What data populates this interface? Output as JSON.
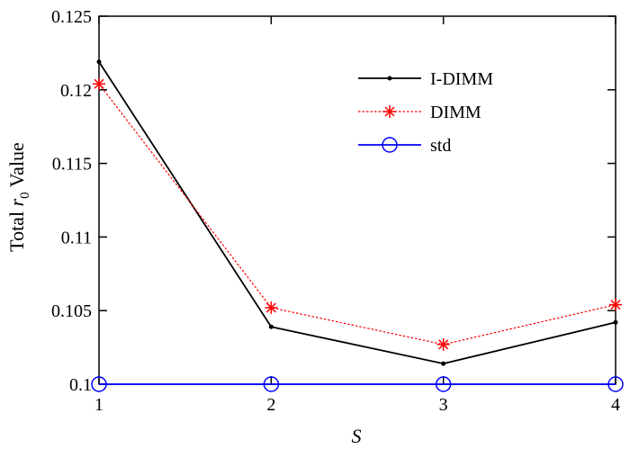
{
  "chart_data": {
    "type": "line",
    "title": "",
    "xlabel": "S",
    "ylabel_prefix": "Total ",
    "ylabel_var": "r",
    "ylabel_sub": "0",
    "ylabel_suffix": " Value",
    "x": [
      1,
      2,
      3,
      4
    ],
    "xlim": [
      1,
      4
    ],
    "ylim": [
      0.1,
      0.125
    ],
    "xticks": [
      1,
      2,
      3,
      4
    ],
    "xtick_labels": [
      "1",
      "2",
      "3",
      "4"
    ],
    "yticks": [
      0.1,
      0.105,
      0.11,
      0.115,
      0.12,
      0.125
    ],
    "ytick_labels": [
      "0.1",
      "0.105",
      "0.11",
      "0.115",
      "0.12",
      "0.125"
    ],
    "grid": false,
    "legend_position": "top-right",
    "series": [
      {
        "name": "I-DIMM",
        "values": [
          0.1219,
          0.1039,
          0.1014,
          0.1042
        ],
        "color": "#000000",
        "line": "solid",
        "marker": "dot"
      },
      {
        "name": "DIMM",
        "values": [
          0.1204,
          0.1052,
          0.1027,
          0.1054
        ],
        "color": "#ff0000",
        "line": "dotted",
        "marker": "asterisk"
      },
      {
        "name": "std",
        "values": [
          0.1,
          0.1,
          0.1,
          0.1
        ],
        "color": "#0000ff",
        "line": "solid",
        "marker": "circle"
      }
    ]
  }
}
